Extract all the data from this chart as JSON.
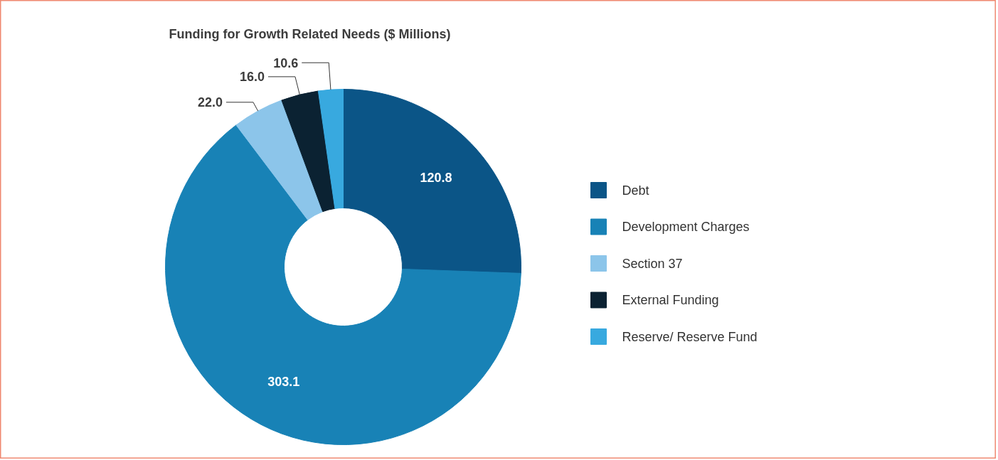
{
  "chart_data": {
    "type": "donut",
    "title": "Funding for Growth Related Needs ($ Millions)",
    "categories": [
      "Debt",
      "Development Charges",
      "Section 37",
      "External Funding",
      "Reserve/ Reserve Fund"
    ],
    "values": [
      120.8,
      303.1,
      22.0,
      16.0,
      10.6
    ],
    "value_labels": [
      "120.8",
      "303.1",
      "22.0",
      "16.0",
      "10.6"
    ],
    "colors": [
      "#0b5587",
      "#1882b6",
      "#8cc5ea",
      "#0b2232",
      "#38a9df"
    ],
    "legend": "right"
  }
}
